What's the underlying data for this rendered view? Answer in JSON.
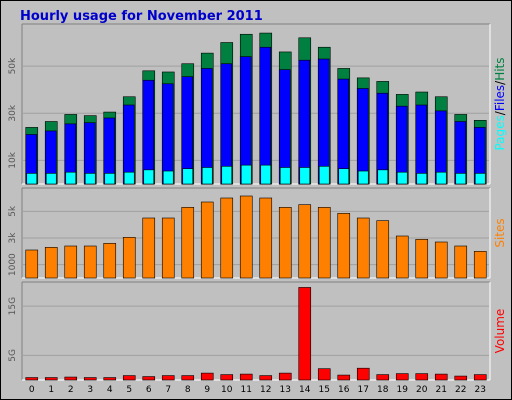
{
  "title": "Hourly usage for November 2011",
  "colors": {
    "hits": "#008040",
    "files": "#0000ff",
    "pages": "#00ffff",
    "sites": "#ff8000",
    "volume": "#ff0000"
  },
  "chart_data": [
    {
      "type": "bar",
      "panel": "top",
      "categories": [
        "0",
        "1",
        "2",
        "3",
        "4",
        "5",
        "6",
        "7",
        "8",
        "9",
        "10",
        "11",
        "12",
        "13",
        "14",
        "15",
        "16",
        "17",
        "18",
        "19",
        "20",
        "21",
        "22",
        "23"
      ],
      "series": [
        {
          "name": "Hits",
          "values": [
            24000,
            26500,
            29500,
            29000,
            30500,
            37000,
            48000,
            47500,
            51000,
            55500,
            60000,
            63500,
            64000,
            56000,
            62000,
            58000,
            49000,
            45000,
            43500,
            38000,
            39000,
            37000,
            29500,
            27000
          ]
        },
        {
          "name": "Files",
          "values": [
            21000,
            22500,
            25500,
            26000,
            28000,
            33500,
            44000,
            42500,
            45500,
            49000,
            51000,
            54000,
            58000,
            48500,
            52500,
            53000,
            44500,
            40500,
            38500,
            33000,
            33500,
            31000,
            26500,
            24000
          ]
        },
        {
          "name": "Pages",
          "values": [
            4500,
            4500,
            5000,
            4500,
            4500,
            5000,
            6000,
            5500,
            6500,
            7000,
            7500,
            8000,
            8000,
            7000,
            7000,
            7500,
            6500,
            5500,
            6000,
            5000,
            4500,
            5000,
            4500,
            4500
          ]
        }
      ],
      "yticks": [
        "10k",
        "30k",
        "50k"
      ],
      "ytick_values": [
        10000,
        30000,
        50000
      ],
      "ylim": [
        0,
        67000
      ],
      "side_label": [
        "Pages",
        "/",
        "Files",
        "/",
        "Hits"
      ]
    },
    {
      "type": "bar",
      "panel": "middle",
      "categories": [
        "0",
        "1",
        "2",
        "3",
        "4",
        "5",
        "6",
        "7",
        "8",
        "9",
        "10",
        "11",
        "12",
        "13",
        "14",
        "15",
        "16",
        "17",
        "18",
        "19",
        "20",
        "21",
        "22",
        "23"
      ],
      "series": [
        {
          "name": "Sites",
          "values": [
            2100,
            2300,
            2400,
            2400,
            2600,
            3050,
            4500,
            4500,
            5300,
            5700,
            6000,
            6150,
            6000,
            5300,
            5500,
            5300,
            4850,
            4500,
            4300,
            3150,
            2900,
            2700,
            2400,
            2000
          ]
        }
      ],
      "yticks": [
        "1000",
        "3k",
        "5k"
      ],
      "ytick_values": [
        1000,
        3000,
        5000
      ],
      "ylim": [
        0,
        6600
      ],
      "side_label": [
        "Sites"
      ]
    },
    {
      "type": "bar",
      "panel": "bottom",
      "categories": [
        "0",
        "1",
        "2",
        "3",
        "4",
        "5",
        "6",
        "7",
        "8",
        "9",
        "10",
        "11",
        "12",
        "13",
        "14",
        "15",
        "16",
        "17",
        "18",
        "19",
        "20",
        "21",
        "22",
        "23"
      ],
      "series": [
        {
          "name": "Volume",
          "values": [
            0.5,
            0.5,
            0.6,
            0.5,
            0.5,
            0.9,
            0.7,
            0.9,
            0.9,
            1.4,
            1.1,
            1.2,
            0.9,
            1.4,
            18.8,
            2.3,
            1.0,
            2.4,
            1.1,
            1.3,
            1.3,
            1.2,
            0.8,
            1.1
          ]
        }
      ],
      "yticks": [
        "5G",
        "15G"
      ],
      "ytick_values": [
        5,
        15
      ],
      "ylim": [
        0,
        19.5
      ],
      "side_label": [
        "Volume"
      ]
    }
  ]
}
